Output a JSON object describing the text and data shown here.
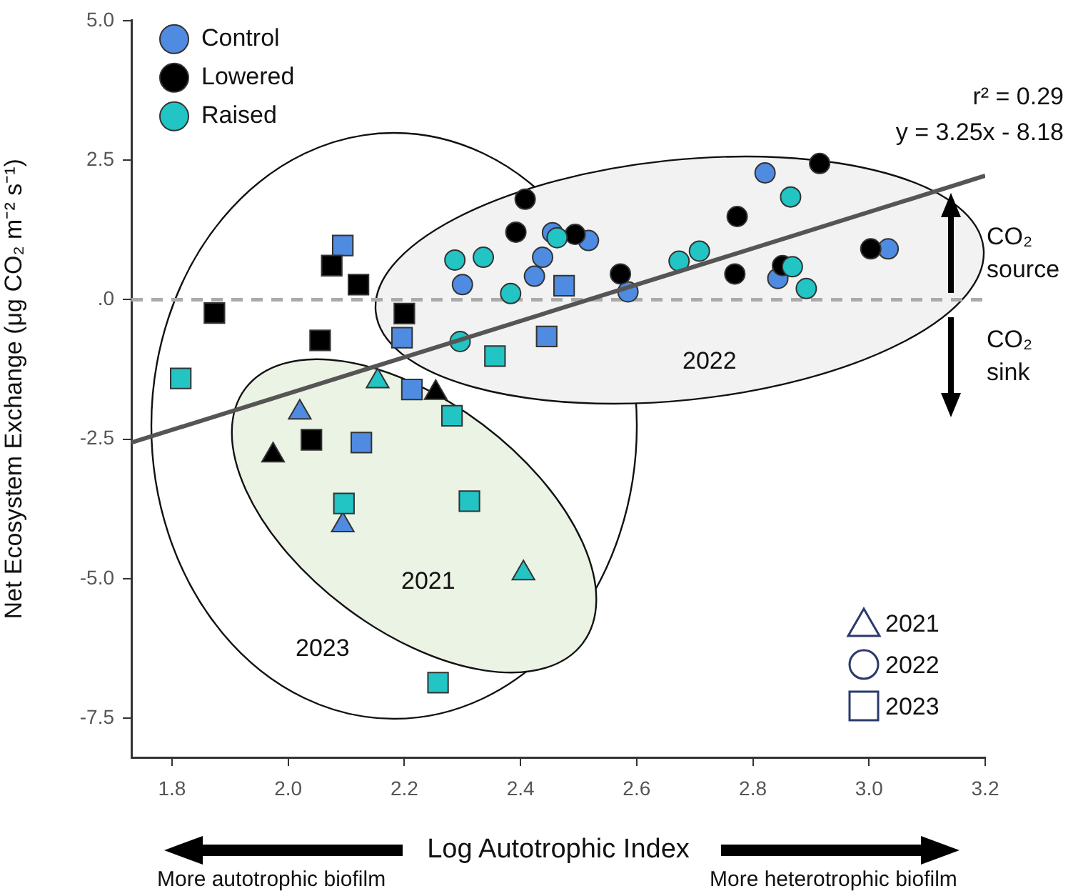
{
  "chart_data": {
    "type": "scatter",
    "xlabel": "Log Autotrophic Index",
    "ylabel": "Net Ecosystem Exchange (μg CO₂ m⁻² s⁻¹)",
    "xlim": [
      1.73,
      3.2
    ],
    "xticks": [
      {
        "value": 1.8,
        "label": "1.8"
      },
      {
        "value": 2,
        "label": "2.0"
      },
      {
        "value": 2.2,
        "label": "2.2"
      },
      {
        "value": 2.4,
        "label": "2.4"
      },
      {
        "value": 2.6,
        "label": "2.6"
      },
      {
        "value": 2.8,
        "label": "2.8"
      },
      {
        "value": 3,
        "label": "3.0"
      },
      {
        "value": 3.2,
        "label": "3.2"
      }
    ],
    "ylim": [
      -8.2,
      5
    ],
    "yticks": [
      {
        "value": 5,
        "label": "5.0"
      },
      {
        "value": 2.5,
        "label": "2.5"
      },
      {
        "value": 0,
        "label": ".0"
      },
      {
        "value": -2.5,
        "label": "-2.5"
      },
      {
        "value": -5,
        "label": "-5.0"
      },
      {
        "value": -7.5,
        "label": "-7.5"
      }
    ],
    "grid": false,
    "legend": "top left",
    "ref_lines": [
      {
        "axis": "y",
        "value": 0,
        "color": "#aaaaaa",
        "line_style": "dashed"
      }
    ],
    "series": [
      {
        "marker": "triangle",
        "color": "#4f8be0",
        "x": [
          2.02,
          2.094
        ],
        "values": [
          -2.02,
          -4.04
        ]
      },
      {
        "marker": "triangle",
        "color": "#000000",
        "x": [
          2.254,
          1.974
        ],
        "values": [
          -1.67,
          -2.79
        ]
      },
      {
        "marker": "triangle",
        "color": "#22c4c4",
        "x": [
          2.154,
          2.405
        ],
        "values": [
          -1.46,
          -4.9
        ]
      },
      {
        "name": "Control",
        "marker": "circle",
        "color": "#4f8be0",
        "x": [
          2.455,
          2.517,
          2.438,
          2.424,
          2.3,
          2.585,
          2.821,
          2.843,
          3.033
        ],
        "values": [
          1.2,
          1.06,
          0.76,
          0.42,
          0.27,
          0.14,
          2.27,
          0.38,
          0.91
        ]
      },
      {
        "name": "Lowered",
        "marker": "circle",
        "color": "#000000",
        "x": [
          2.408,
          2.392,
          2.494,
          2.572,
          2.773,
          2.769,
          2.915,
          2.851,
          3.003
        ],
        "values": [
          1.8,
          1.21,
          1.17,
          0.46,
          1.49,
          0.46,
          2.44,
          0.61,
          0.91
        ]
      },
      {
        "name": "Raised",
        "marker": "circle",
        "color": "#22c4c4",
        "x": [
          2.463,
          2.287,
          2.336,
          2.383,
          2.296,
          2.673,
          2.708,
          2.865,
          2.868,
          2.892
        ],
        "values": [
          1.11,
          0.71,
          0.76,
          0.11,
          -0.75,
          0.69,
          0.87,
          1.84,
          0.59,
          0.2
        ]
      },
      {
        "marker": "square",
        "color": "#4f8be0",
        "x": [
          2.094,
          2.196,
          2.213,
          2.126,
          2.475,
          2.445
        ],
        "values": [
          0.97,
          -0.68,
          -1.61,
          -2.56,
          0.25,
          -0.66
        ]
      },
      {
        "marker": "square",
        "color": "#000000",
        "x": [
          2.075,
          2.121,
          1.873,
          2.2,
          2.055,
          2.04
        ],
        "values": [
          0.61,
          0.27,
          -0.24,
          -0.25,
          -0.73,
          -2.51
        ]
      },
      {
        "marker": "square",
        "color": "#22c4c4",
        "x": [
          2.356,
          1.815,
          2.282,
          2.096,
          2.312,
          2.258
        ],
        "values": [
          -1.01,
          -1.41,
          -2.08,
          -3.65,
          -3.61,
          -6.86
        ]
      },
      {
        "type": "line",
        "marker": "none",
        "color": "#555555",
        "x": [
          1.73,
          3.2
        ],
        "values": [
          -2.56,
          2.22
        ]
      }
    ],
    "annotations": [
      "r² = 0.29",
      "y = 3.25x - 8.18",
      "CO₂ source",
      "CO₂ sink",
      "More autotrophic biofilm",
      "More heterotrophic biofilm",
      "2021",
      "2022",
      "2023",
      "2022",
      "2021",
      "2023"
    ]
  }
}
